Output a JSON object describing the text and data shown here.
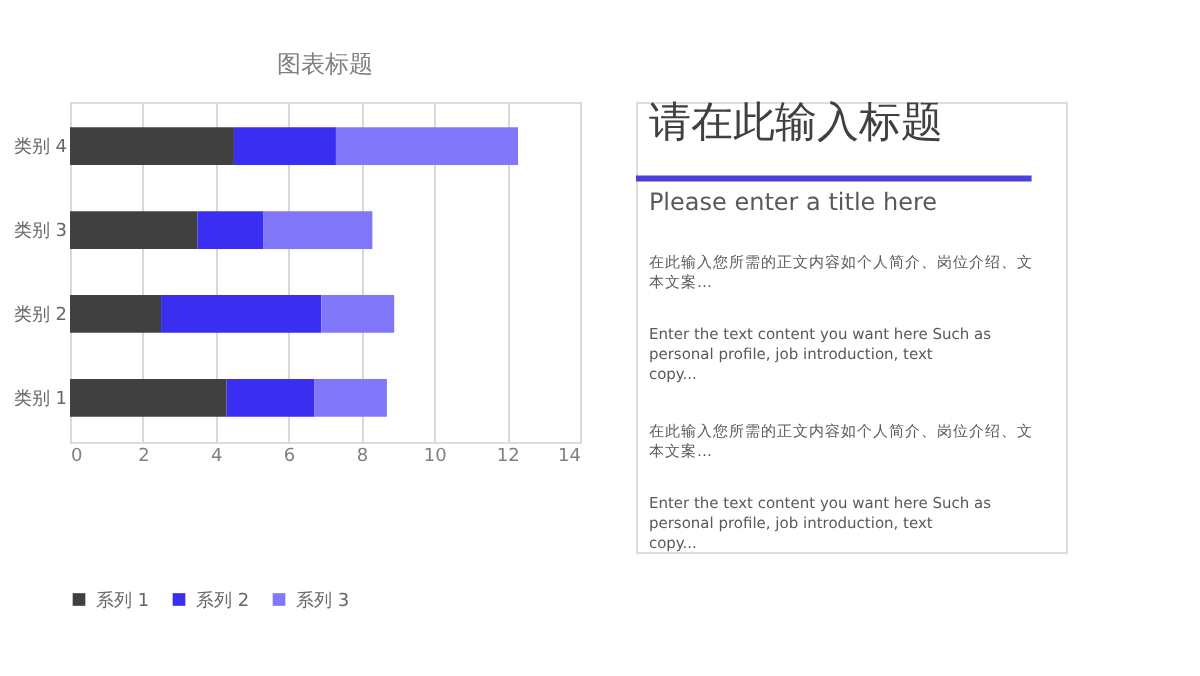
{
  "chart_data": [
    {
      "type": "bar",
      "orientation": "horizontal",
      "stacked": true,
      "title": "图表标题",
      "categories": [
        "类别 4",
        "类别 3",
        "类别 2",
        "类别 1"
      ],
      "series": [
        {
          "name": "系列 1",
          "color": "#404040",
          "values": [
            4.5,
            3.5,
            2.5,
            4.3
          ]
        },
        {
          "name": "系列 2",
          "color": "#3a2ff0",
          "values": [
            2.8,
            1.8,
            4.4,
            2.4
          ]
        },
        {
          "name": "系列 3",
          "color": "#8078f8",
          "values": [
            5,
            3,
            2,
            2
          ]
        }
      ],
      "xlim": [
        0,
        14
      ],
      "xticks": [
        0,
        2,
        4,
        6,
        8,
        10,
        12,
        14
      ],
      "grid": "x",
      "legend": "bottom"
    },
    {
      "type": "other",
      "title": "请在此输入标题",
      "subtitle": "Please enter a title here",
      "annotations": [
        "在此输入您所需的正文内容如个人简介、岗位介绍、文本文案…",
        "Enter the text content you want here Such as personal profile, job introduction, text copy...",
        "在此输入您所需的正文内容如个人简介、岗位介绍、文本文案…",
        "Enter the text content you want here Such as personal profile, job introduction, text copy..."
      ]
    }
  ]
}
